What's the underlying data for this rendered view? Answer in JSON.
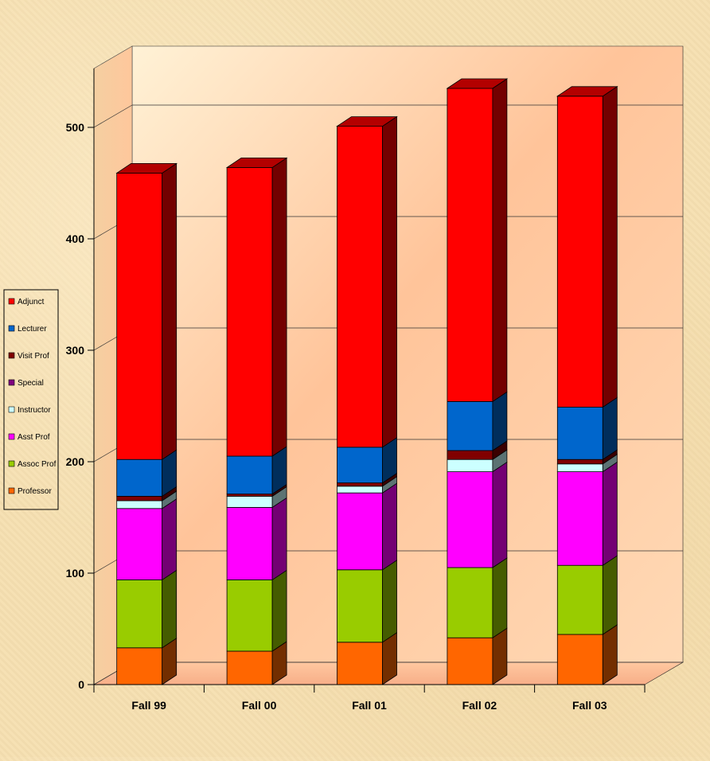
{
  "chart_data": {
    "type": "bar",
    "stacked": true,
    "three_d": true,
    "categories": [
      "Fall 99",
      "Fall 00",
      "Fall 01",
      "Fall 02",
      "Fall 03"
    ],
    "series": [
      {
        "name": "Professor",
        "color": "#ff6600",
        "values": [
          33,
          30,
          38,
          42,
          45
        ]
      },
      {
        "name": "Assoc Prof",
        "color": "#99cc00",
        "values": [
          61,
          64,
          65,
          63,
          62
        ]
      },
      {
        "name": "Asst Prof",
        "color": "#ff00ff",
        "values": [
          64,
          65,
          69,
          86,
          84
        ]
      },
      {
        "name": "Instructor",
        "color": "#ccffff",
        "values": [
          7,
          10,
          6,
          11,
          7
        ]
      },
      {
        "name": "Special",
        "color": "#800080",
        "values": [
          0,
          0,
          0,
          0,
          0
        ]
      },
      {
        "name": "Visit Prof",
        "color": "#800000",
        "values": [
          4,
          2,
          3,
          8,
          4
        ]
      },
      {
        "name": "Lecturer",
        "color": "#0066cc",
        "values": [
          33,
          34,
          32,
          44,
          47
        ]
      },
      {
        "name": "Adjunct",
        "color": "#ff0000",
        "values": [
          257,
          259,
          288,
          281,
          279
        ]
      }
    ],
    "y_ticks": [
      "0",
      "100",
      "200",
      "300",
      "400",
      "500"
    ],
    "ylim": [
      0,
      500
    ],
    "grid": true,
    "legend_position": "left"
  }
}
